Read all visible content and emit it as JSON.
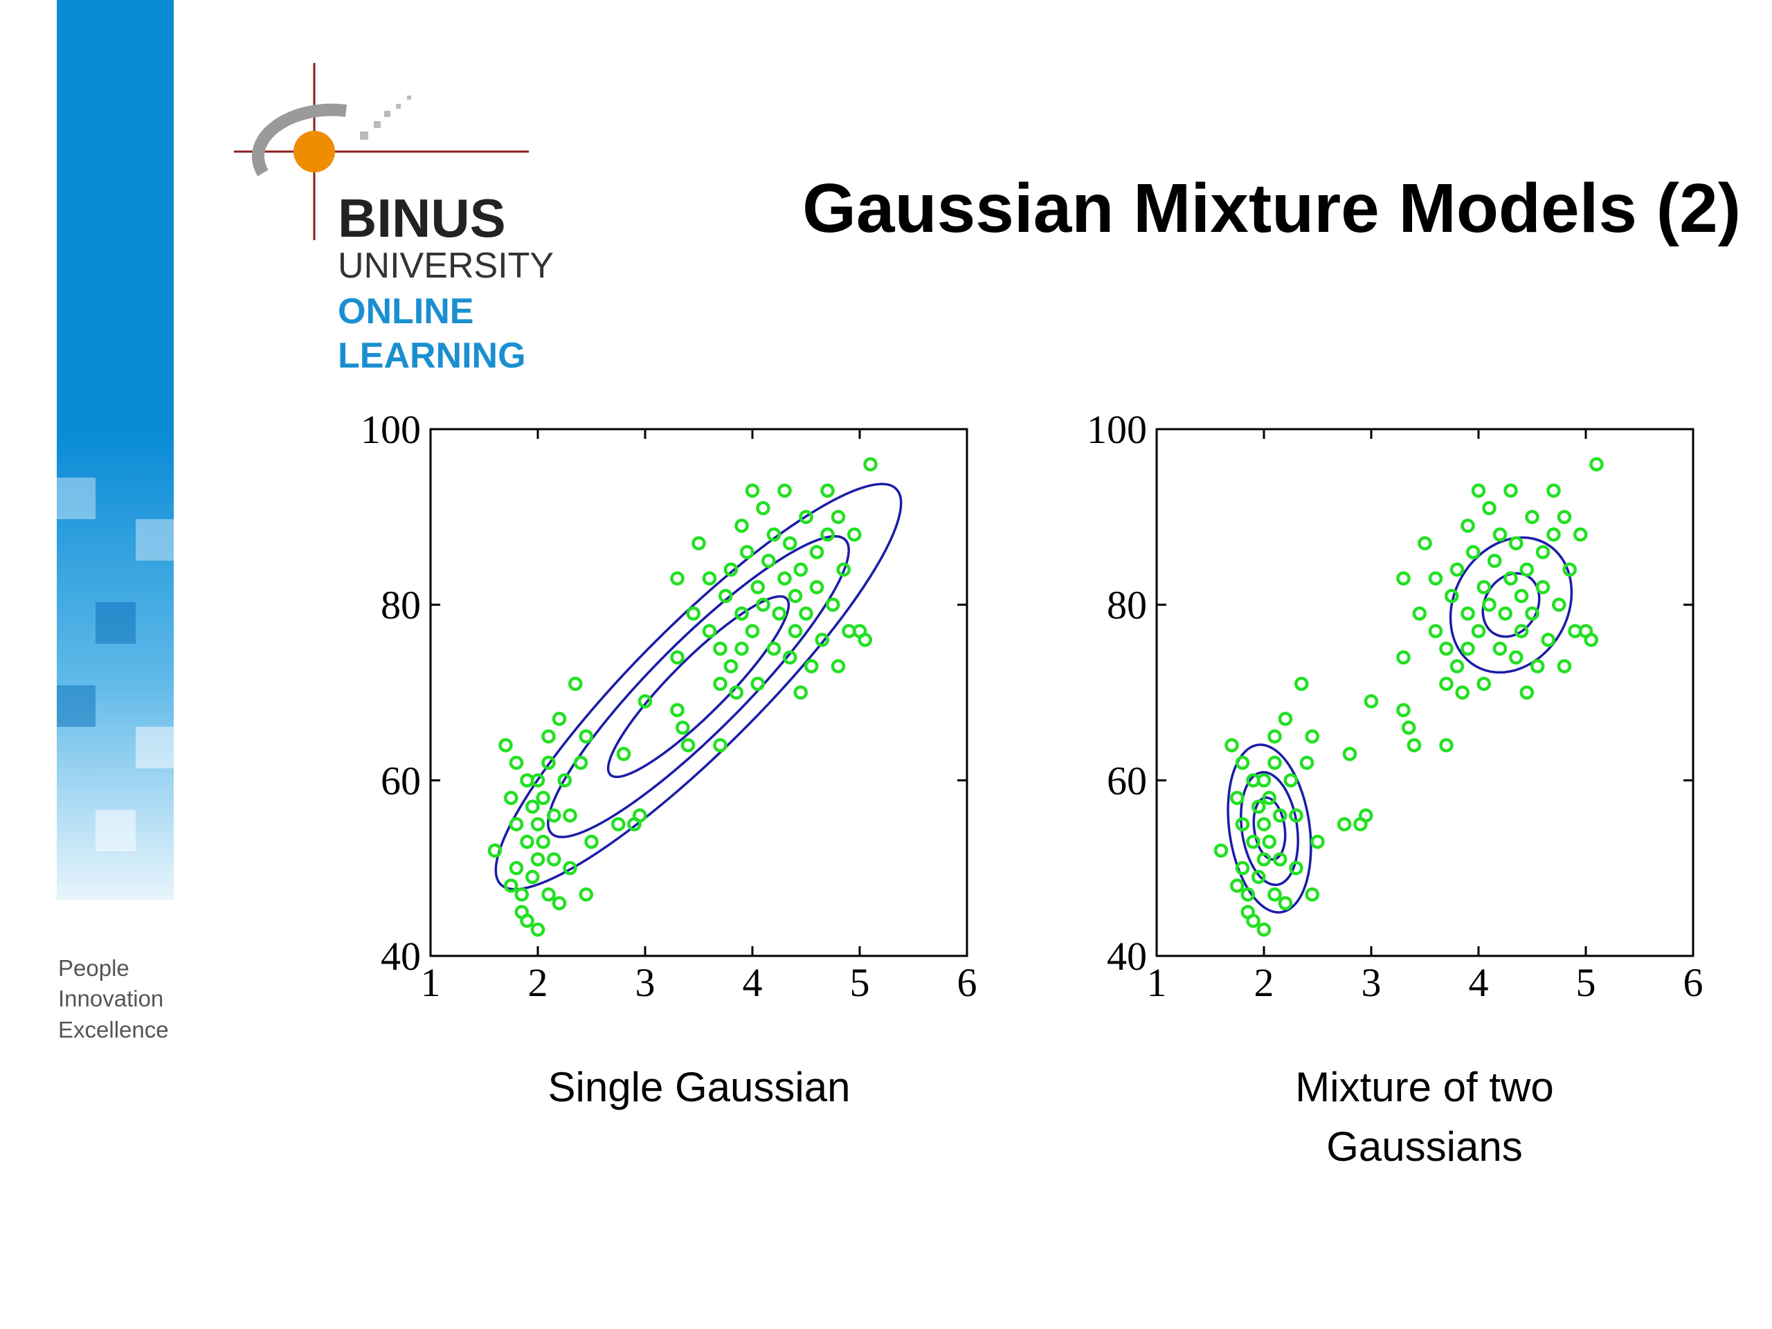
{
  "slide": {
    "title": "Gaussian Mixture Models (2)",
    "logo": {
      "name": "BINUS",
      "line1": "UNIVERSITY",
      "line2": "ONLINE",
      "line3": "LEARNING"
    },
    "tagline": [
      "People",
      "Innovation",
      "Excellence"
    ]
  },
  "chart_data": [
    {
      "type": "scatter",
      "caption": "Single Gaussian",
      "color": "#22e022",
      "xlim": [
        1,
        6
      ],
      "ylim": [
        40,
        100
      ],
      "xticks": [
        1,
        2,
        3,
        4,
        5,
        6
      ],
      "yticks": [
        40,
        60,
        80,
        100
      ],
      "x": [
        1.6,
        1.7,
        1.75,
        1.8,
        1.8,
        1.8,
        1.85,
        1.85,
        1.9,
        1.9,
        1.95,
        1.95,
        2.0,
        2.0,
        2.0,
        2.0,
        2.05,
        2.05,
        2.1,
        2.1,
        2.1,
        2.15,
        2.15,
        2.2,
        2.2,
        2.25,
        2.3,
        2.3,
        2.35,
        2.4,
        2.45,
        2.5,
        2.45,
        1.75,
        1.9,
        2.8,
        2.95,
        2.9,
        3.0,
        3.3,
        3.3,
        3.35,
        3.4,
        3.7,
        2.75,
        3.3,
        3.5,
        3.45,
        3.6,
        3.6,
        3.7,
        3.75,
        3.8,
        3.8,
        3.85,
        3.9,
        3.9,
        3.95,
        4.0,
        4.0,
        4.05,
        4.05,
        4.1,
        4.1,
        4.15,
        4.2,
        4.2,
        4.25,
        4.3,
        4.3,
        4.35,
        4.35,
        4.4,
        4.4,
        4.45,
        4.5,
        4.5,
        4.55,
        4.6,
        4.6,
        4.65,
        4.7,
        4.7,
        4.75,
        4.8,
        4.8,
        4.85,
        4.9,
        4.95,
        5.0,
        5.1,
        5.05,
        4.45,
        3.7,
        3.9
      ],
      "values": [
        52,
        64,
        58,
        62,
        55,
        50,
        47,
        45,
        60,
        53,
        57,
        49,
        51,
        55,
        43,
        60,
        58,
        53,
        47,
        62,
        65,
        56,
        51,
        67,
        46,
        60,
        50,
        56,
        71,
        62,
        65,
        53,
        47,
        48,
        44,
        63,
        56,
        55,
        69,
        74,
        68,
        66,
        64,
        64,
        55,
        83,
        87,
        79,
        77,
        83,
        75,
        81,
        84,
        73,
        70,
        79,
        89,
        86,
        93,
        77,
        82,
        71,
        80,
        91,
        85,
        75,
        88,
        79,
        83,
        93,
        74,
        87,
        81,
        77,
        84,
        90,
        79,
        73,
        86,
        82,
        76,
        93,
        88,
        80,
        90,
        73,
        84,
        77,
        88,
        77,
        96,
        76,
        70,
        71,
        75
      ]
    },
    {
      "type": "scatter",
      "caption": "Mixture of two Gaussians",
      "color": "#22e022",
      "xlim": [
        1,
        6
      ],
      "ylim": [
        40,
        100
      ],
      "xticks": [
        1,
        2,
        3,
        4,
        5,
        6
      ],
      "yticks": [
        40,
        60,
        80,
        100
      ],
      "x": [
        1.6,
        1.7,
        1.75,
        1.8,
        1.8,
        1.8,
        1.85,
        1.85,
        1.9,
        1.9,
        1.95,
        1.95,
        2.0,
        2.0,
        2.0,
        2.0,
        2.05,
        2.05,
        2.1,
        2.1,
        2.1,
        2.15,
        2.15,
        2.2,
        2.2,
        2.25,
        2.3,
        2.3,
        2.35,
        2.4,
        2.45,
        2.5,
        2.45,
        1.75,
        1.9,
        2.8,
        2.95,
        2.9,
        3.0,
        3.3,
        3.3,
        3.35,
        3.4,
        3.7,
        2.75,
        3.3,
        3.5,
        3.45,
        3.6,
        3.6,
        3.7,
        3.75,
        3.8,
        3.8,
        3.85,
        3.9,
        3.9,
        3.95,
        4.0,
        4.0,
        4.05,
        4.05,
        4.1,
        4.1,
        4.15,
        4.2,
        4.2,
        4.25,
        4.3,
        4.3,
        4.35,
        4.35,
        4.4,
        4.4,
        4.45,
        4.5,
        4.5,
        4.55,
        4.6,
        4.6,
        4.65,
        4.7,
        4.7,
        4.75,
        4.8,
        4.8,
        4.85,
        4.9,
        4.95,
        5.0,
        5.1,
        5.05,
        4.45,
        3.7,
        3.9
      ],
      "values": [
        52,
        64,
        58,
        62,
        55,
        50,
        47,
        45,
        60,
        53,
        57,
        49,
        51,
        55,
        43,
        60,
        58,
        53,
        47,
        62,
        65,
        56,
        51,
        67,
        46,
        60,
        50,
        56,
        71,
        62,
        65,
        53,
        47,
        48,
        44,
        63,
        56,
        55,
        69,
        74,
        68,
        66,
        64,
        64,
        55,
        83,
        87,
        79,
        77,
        83,
        75,
        81,
        84,
        73,
        70,
        79,
        89,
        86,
        93,
        77,
        82,
        71,
        80,
        91,
        85,
        75,
        88,
        79,
        83,
        93,
        74,
        87,
        81,
        77,
        84,
        90,
        79,
        73,
        86,
        82,
        76,
        93,
        88,
        80,
        90,
        73,
        84,
        77,
        88,
        77,
        96,
        76,
        70,
        71,
        75
      ]
    }
  ]
}
